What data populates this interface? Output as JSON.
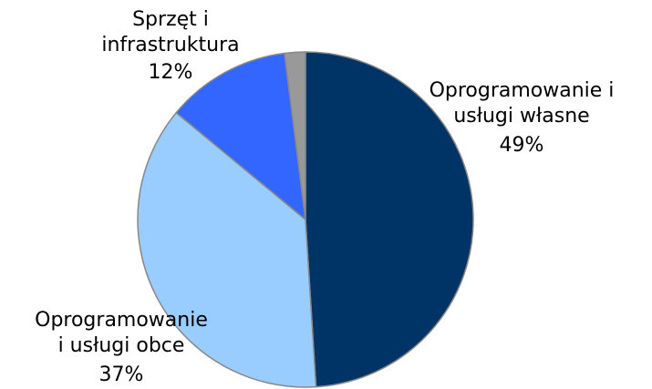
{
  "chart_data": {
    "type": "pie",
    "categories": [
      [
        "Oprogramowanie i",
        "usługi własne"
      ],
      [
        "Oprogramowanie",
        "i usługi obce"
      ],
      [
        "Sprzęt i",
        "infrastruktura"
      ],
      null
    ],
    "values": [
      49,
      37,
      12,
      2
    ],
    "value_labels": [
      "49%",
      "37%",
      "12%",
      null
    ],
    "colors": [
      "#003366",
      "#99ccff",
      "#3366ff",
      "#999999"
    ]
  }
}
